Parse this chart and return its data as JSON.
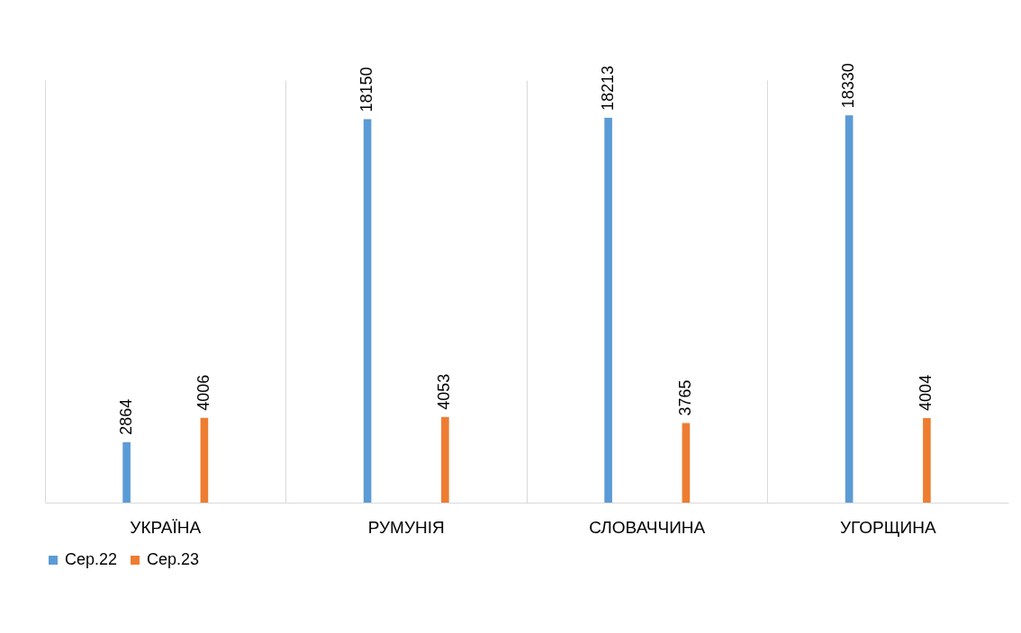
{
  "chart_data": {
    "type": "bar",
    "categories": [
      "УКРАЇНА",
      "РУМУНІЯ",
      "СЛОВАЧЧИНА",
      "УГОРЩИНА"
    ],
    "series": [
      {
        "name": "Сер.22",
        "color": "#5b9bd5",
        "values": [
          2864,
          18150,
          18213,
          18330
        ]
      },
      {
        "name": "Сер.23",
        "color": "#ed7d31",
        "values": [
          4006,
          4053,
          3765,
          4004
        ]
      }
    ],
    "data_labels": true,
    "legend": "bottom",
    "grid": "x"
  }
}
